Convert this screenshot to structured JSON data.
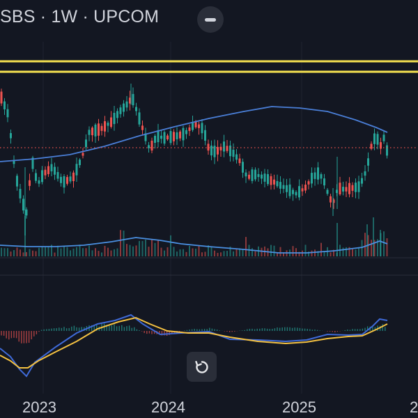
{
  "header": {
    "title": "SBS · 1W · UPCOM"
  },
  "chart_data": {
    "type": "candlestick",
    "interval": "1W",
    "x_tick_labels": [
      "2023",
      "2024",
      "2025",
      "2"
    ],
    "grid": true,
    "colors": {
      "background": "#131722",
      "up": "#26a69a",
      "down": "#ef5350",
      "moving_average": "#4a7fd8",
      "volume_average": "#4a90e2",
      "horizontal_lines": "#f5e150",
      "macd_line": "#3f6ad8",
      "signal_line": "#f5c242",
      "price_marker_line": "#ef5350"
    },
    "price_panel": {
      "horizontal_levels": 2,
      "has_current_price_line": true,
      "has_long_moving_average": true
    },
    "volume_panel": {
      "has_volume_average": true
    },
    "macd_panel": {
      "series": [
        "macd",
        "signal",
        "histogram"
      ]
    }
  }
}
